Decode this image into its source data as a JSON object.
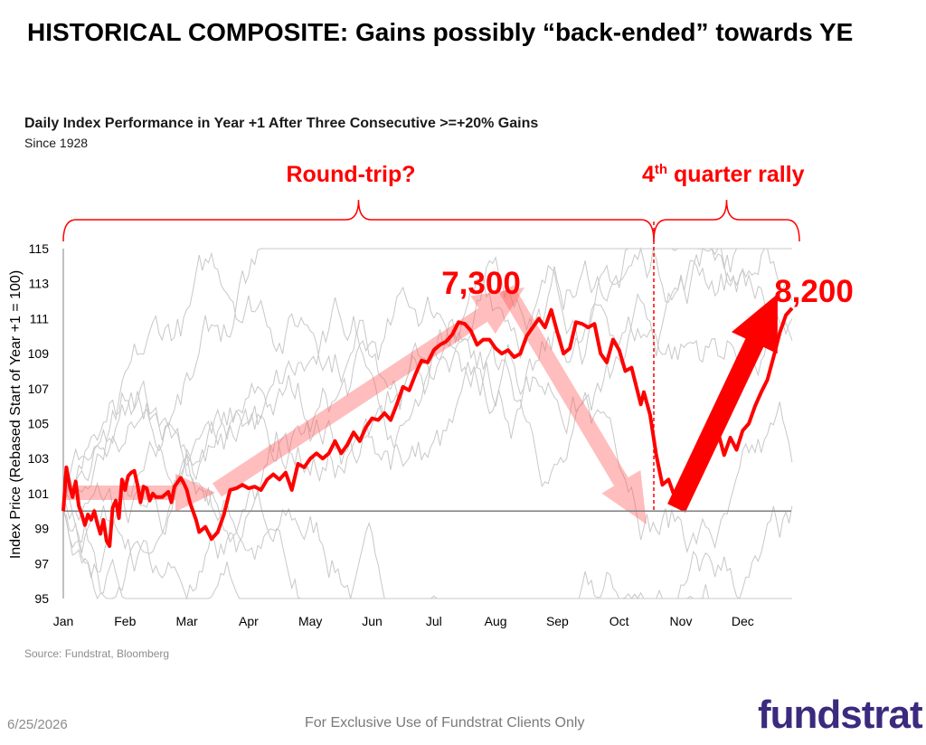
{
  "slide": {
    "title": "HISTORICAL COMPOSITE: Gains possibly “back-ended” towards YE",
    "source": "Source: Fundstrat, Bloomberg",
    "date": "6/25/2026",
    "footer_note": "For Exclusive Use of Fundstrat Clients Only",
    "logo_text": "fundstrat"
  },
  "chart_data": {
    "type": "line",
    "title": "Daily Index Performance in Year +1 After Three Consecutive >=+20% Gains",
    "subtitle": "Since 1928",
    "ylabel": "Index Price (Rebased Start of Year +1 = 100)",
    "xlabel": "",
    "categories": [
      "Jan",
      "Feb",
      "Mar",
      "Apr",
      "May",
      "Jun",
      "Jul",
      "Aug",
      "Sep",
      "Oct",
      "Nov",
      "Dec"
    ],
    "ylim": [
      95,
      115
    ],
    "yticks": [
      95,
      97,
      99,
      101,
      103,
      105,
      107,
      109,
      111,
      113,
      115
    ],
    "reference_line": 100,
    "grid": false,
    "series": [
      {
        "role": "composite",
        "color": "#ff0000",
        "x": [
          0.0,
          0.05,
          0.1,
          0.15,
          0.2,
          0.25,
          0.3,
          0.35,
          0.4,
          0.45,
          0.5,
          0.55,
          0.6,
          0.65,
          0.7,
          0.75,
          0.8,
          0.85,
          0.9,
          0.95,
          1.0,
          1.05,
          1.1,
          1.15,
          1.2,
          1.25,
          1.3,
          1.35,
          1.4,
          1.45,
          1.5,
          1.6,
          1.7,
          1.75,
          1.8,
          1.9,
          1.95,
          2.0,
          2.05,
          2.1,
          2.15,
          2.2,
          2.3,
          2.4,
          2.5,
          2.6,
          2.7,
          2.8,
          2.9,
          3.0,
          3.1,
          3.2,
          3.3,
          3.4,
          3.5,
          3.6,
          3.7,
          3.8,
          3.9,
          4.0,
          4.1,
          4.2,
          4.3,
          4.4,
          4.5,
          4.6,
          4.7,
          4.8,
          4.9,
          5.0,
          5.1,
          5.2,
          5.3,
          5.4,
          5.5,
          5.6,
          5.7,
          5.8,
          5.9,
          6.0,
          6.1,
          6.2,
          6.3,
          6.4,
          6.5,
          6.6,
          6.7,
          6.8,
          6.9,
          7.0,
          7.1,
          7.2,
          7.3,
          7.4,
          7.5,
          7.6,
          7.7,
          7.8,
          7.9,
          8.0,
          8.1,
          8.2,
          8.3,
          8.4,
          8.5,
          8.6,
          8.7,
          8.8,
          8.9,
          9.0,
          9.1,
          9.2,
          9.3,
          9.35,
          9.4,
          9.5,
          9.6,
          9.7,
          9.8,
          9.9,
          10.0,
          10.1,
          10.2,
          10.3,
          10.4,
          10.5,
          10.6,
          10.7,
          10.8,
          10.9,
          11.0,
          11.1,
          11.2,
          11.3,
          11.4,
          11.5,
          11.6,
          11.7,
          11.8
        ],
        "values": [
          100.0,
          102.5,
          101.5,
          100.8,
          101.7,
          100.3,
          99.8,
          99.2,
          99.8,
          99.5,
          100.0,
          99.3,
          98.7,
          99.5,
          98.3,
          98.0,
          100.2,
          100.6,
          99.6,
          101.8,
          101.2,
          102.0,
          102.2,
          102.3,
          101.5,
          100.5,
          101.4,
          101.3,
          100.6,
          101.0,
          100.8,
          100.8,
          101.1,
          100.5,
          101.4,
          101.9,
          101.6,
          101.2,
          100.5,
          100.0,
          99.5,
          98.8,
          99.1,
          98.4,
          98.8,
          99.8,
          101.2,
          101.3,
          101.5,
          101.3,
          101.4,
          101.2,
          101.8,
          102.1,
          101.8,
          102.2,
          101.2,
          102.7,
          102.5,
          103.0,
          103.3,
          103.0,
          103.3,
          104.0,
          103.3,
          103.8,
          104.5,
          104.0,
          104.8,
          105.3,
          105.2,
          105.6,
          105.2,
          106.1,
          107.1,
          106.9,
          107.8,
          108.6,
          108.5,
          109.2,
          109.5,
          109.7,
          110.1,
          110.8,
          110.7,
          110.3,
          109.5,
          109.8,
          109.8,
          109.3,
          109.0,
          109.2,
          108.8,
          109.0,
          110.0,
          110.5,
          111.0,
          110.5,
          111.5,
          110.2,
          109.0,
          109.3,
          110.8,
          110.7,
          110.5,
          110.7,
          109.0,
          108.5,
          109.8,
          109.2,
          108.0,
          108.2,
          106.8,
          106.1,
          106.8,
          105.5,
          103.2,
          101.5,
          101.8,
          100.8,
          101.5,
          101.8,
          102.5,
          103.2,
          104.0,
          103.5,
          104.5,
          103.2,
          104.2,
          103.5,
          104.6,
          105.0,
          106.0,
          106.8,
          107.5,
          108.8,
          110.2,
          111.2,
          111.6
        ],
        "note": "x = months elapsed since start of Jan"
      }
    ],
    "background_series_note": "individual years (light gray)",
    "annotations": {
      "round_trip": "Round-trip?",
      "q4_rally_prefix": "4",
      "q4_rally_sup": "th",
      "q4_rally_suffix": " quarter rally",
      "peak_label": "7,300",
      "end_label": "8,200"
    }
  }
}
